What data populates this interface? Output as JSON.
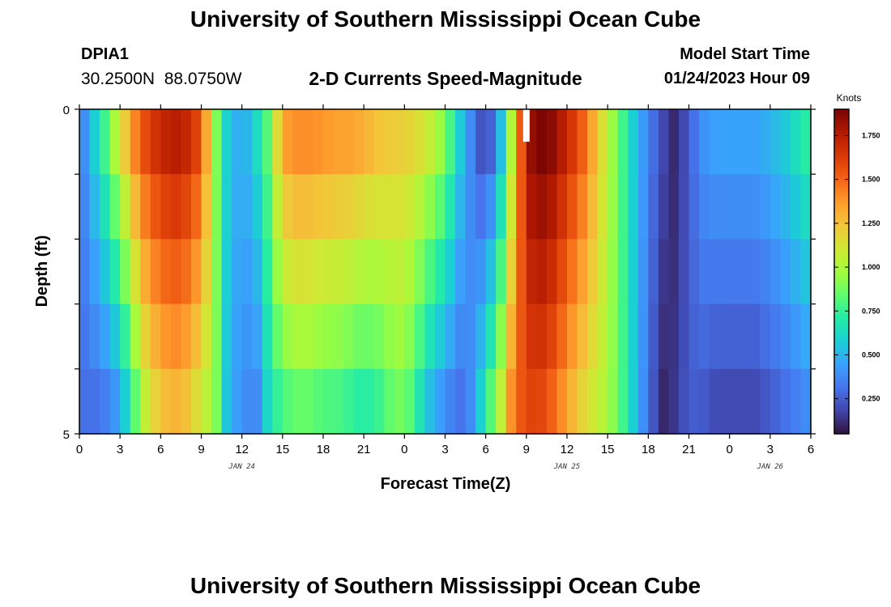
{
  "header": {
    "main_title": "University of Southern Mississippi Ocean Cube",
    "station_id": "DPIA1",
    "coordinates": "30.2500N  88.0750W",
    "chart_title": "2-D Currents Speed-Magnitude",
    "start_label": "Model Start Time",
    "start_value": "01/24/2023 Hour 09"
  },
  "footer": {
    "repeat_title": "University of Southern Mississippi Ocean Cube"
  },
  "colors": {
    "scale": [
      "#30123b",
      "#4145ab",
      "#4675ed",
      "#39a2fc",
      "#1bcfd4",
      "#24eca6",
      "#61fc6c",
      "#a4fc3b",
      "#d1e834",
      "#f3c63a",
      "#fe9b2d",
      "#f36315",
      "#d93806",
      "#b11901",
      "#7a0403"
    ],
    "frame": "#000000",
    "gap_marker": "#ffffff"
  },
  "chart_data": {
    "type": "heatmap",
    "title": "2-D Currents Speed-Magnitude",
    "xlabel": "Forecast Time(Z)",
    "ylabel": "Depth (ft)",
    "x_unit": "hours from 00Z JAN 24",
    "x_range": [
      0,
      54
    ],
    "x_tick_values": [
      0,
      3,
      6,
      9,
      12,
      15,
      18,
      21,
      24,
      27,
      30,
      33,
      36,
      39,
      42,
      45,
      48,
      51,
      54
    ],
    "x_tick_labels": [
      "0",
      "3",
      "6",
      "9",
      "12",
      "15",
      "18",
      "21",
      "0",
      "3",
      "6",
      "9",
      "12",
      "15",
      "18",
      "21",
      "0",
      "3",
      "6"
    ],
    "date_labels": [
      {
        "text": "JAN 24",
        "hour": 12
      },
      {
        "text": "JAN 25",
        "hour": 36
      },
      {
        "text": "JAN 26",
        "hour": 51
      }
    ],
    "y_range": [
      0,
      5
    ],
    "y_tick_labels": [
      "0",
      "5"
    ],
    "depth_levels": [
      0,
      1,
      2,
      3,
      4,
      5
    ],
    "colorbar": {
      "units": "Knots",
      "range": [
        0.05,
        1.9
      ],
      "tick_values": [
        0.25,
        0.5,
        0.75,
        1.0,
        1.25,
        1.5,
        1.75
      ],
      "tick_labels": [
        "0.250",
        "0.500",
        "0.750",
        "1.000",
        "1.250",
        "1.500",
        "1.750"
      ]
    },
    "no_data_marker": {
      "hour": 33,
      "depth_from": 0,
      "depth_to": 0.5
    },
    "surface_profile_knots": [
      [
        0,
        0.3
      ],
      [
        1,
        0.55
      ],
      [
        2,
        0.8
      ],
      [
        3,
        1.1
      ],
      [
        4,
        1.4
      ],
      [
        5,
        1.6
      ],
      [
        6,
        1.7
      ],
      [
        7,
        1.75
      ],
      [
        8,
        1.7
      ],
      [
        9,
        1.55
      ],
      [
        10,
        0.95
      ],
      [
        11,
        0.55
      ],
      [
        12,
        0.45
      ],
      [
        13,
        0.6
      ],
      [
        14,
        0.85
      ],
      [
        15,
        1.35
      ],
      [
        16,
        1.4
      ],
      [
        17,
        1.4
      ],
      [
        18,
        1.38
      ],
      [
        19,
        1.35
      ],
      [
        20,
        1.35
      ],
      [
        21,
        1.3
      ],
      [
        22,
        1.25
      ],
      [
        23,
        1.22
      ],
      [
        24,
        1.2
      ],
      [
        25,
        1.15
      ],
      [
        26,
        1.05
      ],
      [
        27,
        0.9
      ],
      [
        28,
        0.6
      ],
      [
        29,
        0.35
      ],
      [
        30,
        0.15
      ],
      [
        31,
        0.45
      ],
      [
        32,
        1.1
      ],
      [
        33,
        1.8
      ],
      [
        34,
        1.9
      ],
      [
        35,
        1.85
      ],
      [
        36,
        1.7
      ],
      [
        37,
        1.55
      ],
      [
        38,
        1.3
      ],
      [
        39,
        1.05
      ],
      [
        40,
        0.8
      ],
      [
        41,
        0.55
      ],
      [
        42,
        0.35
      ],
      [
        43,
        0.2
      ],
      [
        44,
        0.1
      ],
      [
        45,
        0.25
      ],
      [
        46,
        0.4
      ],
      [
        47,
        0.45
      ],
      [
        48,
        0.45
      ],
      [
        49,
        0.45
      ],
      [
        50,
        0.45
      ],
      [
        51,
        0.5
      ],
      [
        52,
        0.55
      ],
      [
        53,
        0.65
      ],
      [
        54,
        0.75
      ]
    ],
    "bottom_profile_knots": [
      [
        0,
        0.3
      ],
      [
        1,
        0.3
      ],
      [
        2,
        0.35
      ],
      [
        3,
        0.45
      ],
      [
        4,
        0.8
      ],
      [
        5,
        1.1
      ],
      [
        6,
        1.25
      ],
      [
        7,
        1.3
      ],
      [
        8,
        1.25
      ],
      [
        9,
        1.1
      ],
      [
        10,
        0.95
      ],
      [
        11,
        0.5
      ],
      [
        12,
        0.4
      ],
      [
        13,
        0.35
      ],
      [
        14,
        0.65
      ],
      [
        15,
        0.8
      ],
      [
        16,
        0.85
      ],
      [
        17,
        0.85
      ],
      [
        18,
        0.8
      ],
      [
        19,
        0.8
      ],
      [
        20,
        0.75
      ],
      [
        21,
        0.7
      ],
      [
        22,
        0.75
      ],
      [
        23,
        0.85
      ],
      [
        24,
        0.9
      ],
      [
        25,
        0.7
      ],
      [
        26,
        0.5
      ],
      [
        27,
        0.4
      ],
      [
        28,
        0.3
      ],
      [
        29,
        0.4
      ],
      [
        30,
        0.7
      ],
      [
        31,
        1.0
      ],
      [
        32,
        1.45
      ],
      [
        33,
        1.6
      ],
      [
        34,
        1.6
      ],
      [
        35,
        1.5
      ],
      [
        36,
        1.35
      ],
      [
        37,
        1.2
      ],
      [
        38,
        1.1
      ],
      [
        39,
        1.0
      ],
      [
        40,
        0.8
      ],
      [
        41,
        0.55
      ],
      [
        42,
        0.3
      ],
      [
        43,
        0.1
      ],
      [
        44,
        0.15
      ],
      [
        45,
        0.25
      ],
      [
        46,
        0.25
      ],
      [
        47,
        0.2
      ],
      [
        48,
        0.2
      ],
      [
        49,
        0.2
      ],
      [
        50,
        0.2
      ],
      [
        51,
        0.25
      ],
      [
        52,
        0.3
      ],
      [
        53,
        0.35
      ],
      [
        54,
        0.4
      ]
    ]
  }
}
